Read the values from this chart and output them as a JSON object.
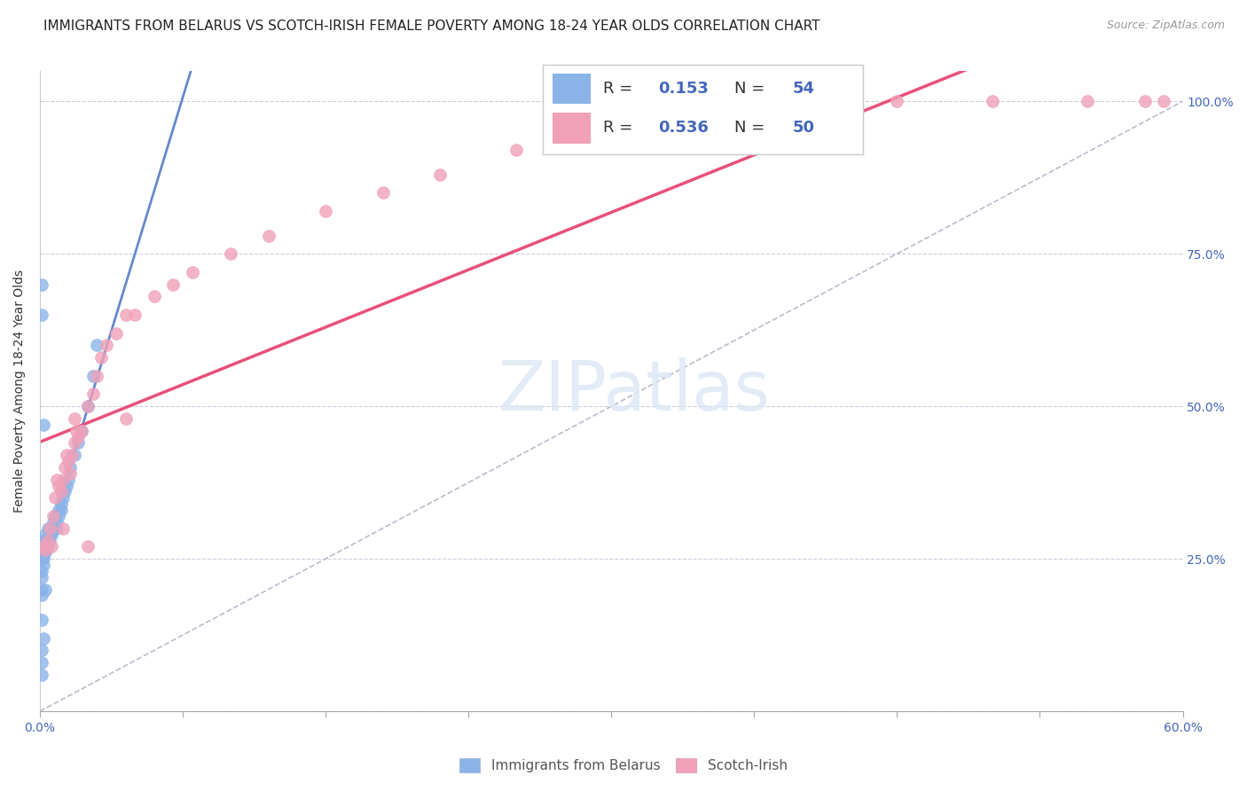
{
  "title": "IMMIGRANTS FROM BELARUS VS SCOTCH-IRISH FEMALE POVERTY AMONG 18-24 YEAR OLDS CORRELATION CHART",
  "source": "Source: ZipAtlas.com",
  "ylabel": "Female Poverty Among 18-24 Year Olds",
  "right_yticklabels": [
    "",
    "25.0%",
    "50.0%",
    "75.0%",
    "100.0%"
  ],
  "watermark_text": "ZIPatlas",
  "color_belarus": "#8ab4e8",
  "color_scotch": "#f0a0b8",
  "color_trend_belarus": "#6688cc",
  "color_trend_scotch": "#e8507a",
  "color_trend_dashed": "#bbbbcc",
  "xlim": [
    0.0,
    0.6
  ],
  "ylim": [
    0.0,
    1.05
  ],
  "title_fontsize": 11,
  "axis_label_fontsize": 10,
  "tick_fontsize": 10,
  "legend_fontsize": 13,
  "belarus_x": [
    0.001,
    0.001,
    0.001,
    0.001,
    0.001,
    0.001,
    0.001,
    0.001,
    0.002,
    0.002,
    0.002,
    0.002,
    0.002,
    0.003,
    0.003,
    0.003,
    0.003,
    0.004,
    0.004,
    0.004,
    0.005,
    0.005,
    0.006,
    0.006,
    0.007,
    0.007,
    0.008,
    0.009,
    0.009,
    0.01,
    0.01,
    0.011,
    0.011,
    0.012,
    0.013,
    0.014,
    0.015,
    0.016,
    0.018,
    0.02,
    0.022,
    0.025,
    0.028,
    0.03,
    0.001,
    0.001,
    0.002,
    0.003,
    0.001,
    0.002,
    0.001,
    0.001,
    0.001
  ],
  "belarus_y": [
    0.27,
    0.26,
    0.28,
    0.25,
    0.23,
    0.22,
    0.2,
    0.19,
    0.27,
    0.28,
    0.26,
    0.24,
    0.25,
    0.28,
    0.27,
    0.26,
    0.29,
    0.28,
    0.27,
    0.3,
    0.29,
    0.28,
    0.3,
    0.29,
    0.31,
    0.3,
    0.32,
    0.31,
    0.3,
    0.33,
    0.32,
    0.34,
    0.33,
    0.35,
    0.36,
    0.37,
    0.38,
    0.4,
    0.42,
    0.44,
    0.46,
    0.5,
    0.55,
    0.6,
    0.7,
    0.65,
    0.47,
    0.2,
    0.15,
    0.12,
    0.1,
    0.08,
    0.06
  ],
  "scotch_x": [
    0.003,
    0.004,
    0.005,
    0.006,
    0.007,
    0.008,
    0.009,
    0.01,
    0.011,
    0.012,
    0.013,
    0.014,
    0.015,
    0.016,
    0.017,
    0.018,
    0.019,
    0.02,
    0.022,
    0.025,
    0.028,
    0.03,
    0.032,
    0.035,
    0.04,
    0.045,
    0.05,
    0.06,
    0.07,
    0.08,
    0.1,
    0.12,
    0.15,
    0.18,
    0.21,
    0.25,
    0.3,
    0.35,
    0.4,
    0.45,
    0.5,
    0.55,
    0.58,
    0.59,
    0.002,
    0.012,
    0.018,
    0.025,
    0.045
  ],
  "scotch_y": [
    0.265,
    0.28,
    0.3,
    0.27,
    0.32,
    0.35,
    0.38,
    0.37,
    0.36,
    0.38,
    0.4,
    0.42,
    0.41,
    0.39,
    0.42,
    0.44,
    0.46,
    0.45,
    0.46,
    0.5,
    0.52,
    0.55,
    0.58,
    0.6,
    0.62,
    0.65,
    0.65,
    0.68,
    0.7,
    0.72,
    0.75,
    0.78,
    0.82,
    0.85,
    0.88,
    0.92,
    0.95,
    0.97,
    0.99,
    1.0,
    1.0,
    1.0,
    1.0,
    1.0,
    0.27,
    0.3,
    0.48,
    0.27,
    0.48
  ]
}
